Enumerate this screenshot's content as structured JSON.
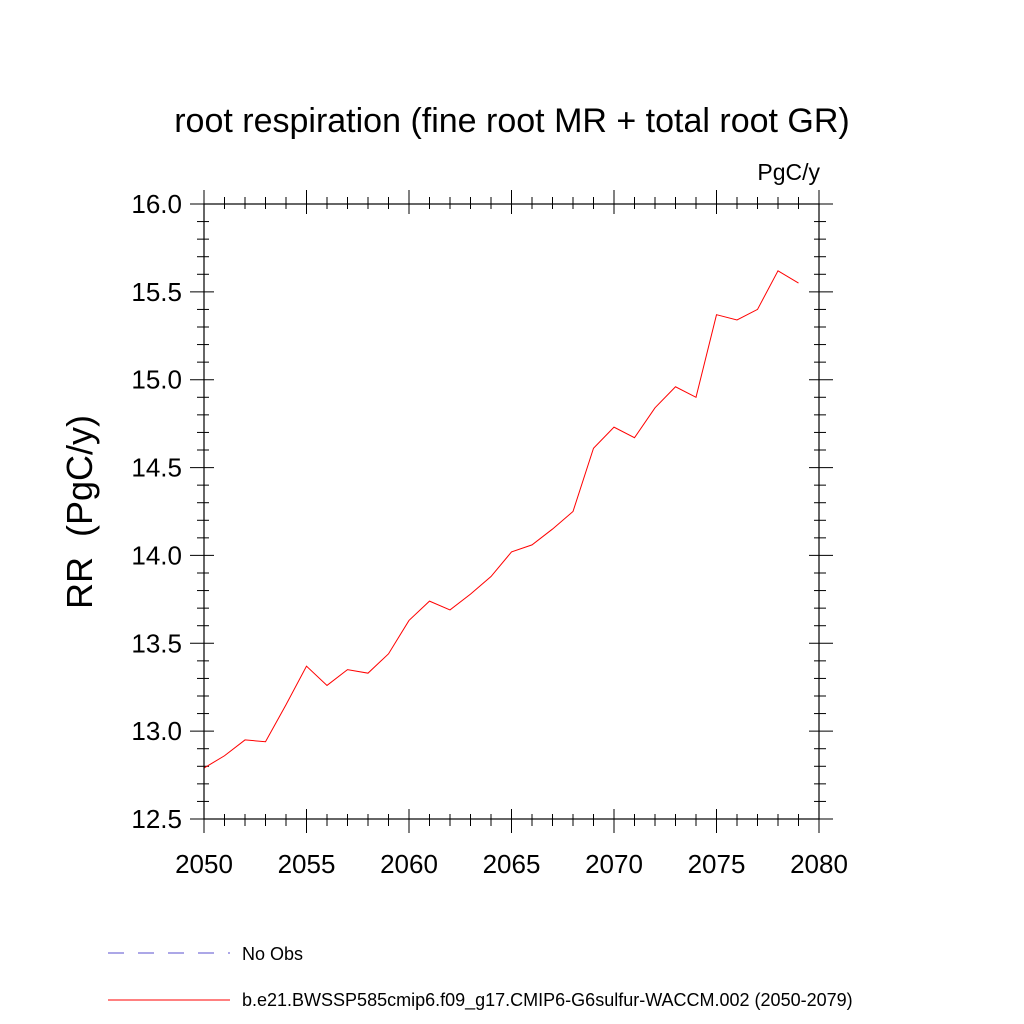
{
  "chart_data": {
    "type": "line",
    "title": "root respiration (fine root MR + total root GR)",
    "units": "PgC/y",
    "ylabel": "RR  (PgC/y)",
    "xlabel": "",
    "xlim": [
      2050,
      2080
    ],
    "ylim": [
      12.5,
      16.0
    ],
    "x_ticks": [
      2050,
      2055,
      2060,
      2065,
      2070,
      2075,
      2080
    ],
    "y_ticks": [
      12.5,
      13.0,
      13.5,
      14.0,
      14.5,
      15.0,
      15.5,
      16.0
    ],
    "x_tick_labels": [
      "2050",
      "2055",
      "2060",
      "2065",
      "2070",
      "2075",
      "2080"
    ],
    "y_tick_labels": [
      "12.5",
      "13.0",
      "13.5",
      "14.0",
      "14.5",
      "15.0",
      "15.5",
      "16.0"
    ],
    "grid": false,
    "legend_position": "bottom",
    "series": [
      {
        "name": "b.e21.BWSSP585cmip6.f09_g17.CMIP6-G6sulfur-WACCM.002 (2050-2079)",
        "color": "#ff0000",
        "style": "solid",
        "x": [
          2050,
          2051,
          2052,
          2053,
          2054,
          2055,
          2056,
          2057,
          2058,
          2059,
          2060,
          2061,
          2062,
          2063,
          2064,
          2065,
          2066,
          2067,
          2068,
          2069,
          2070,
          2071,
          2072,
          2073,
          2074,
          2075,
          2076,
          2077,
          2078,
          2079
        ],
        "values": [
          12.79,
          12.86,
          12.95,
          12.94,
          13.15,
          13.37,
          13.26,
          13.35,
          13.33,
          13.44,
          13.63,
          13.74,
          13.69,
          13.78,
          13.88,
          14.02,
          14.06,
          14.15,
          14.25,
          14.61,
          14.73,
          14.67,
          14.84,
          14.96,
          14.9,
          15.37,
          15.34,
          15.4,
          15.62,
          15.55
        ]
      },
      {
        "name": "No Obs",
        "color": "#5a4fcf",
        "style": "dashed",
        "x": [],
        "values": []
      }
    ]
  }
}
